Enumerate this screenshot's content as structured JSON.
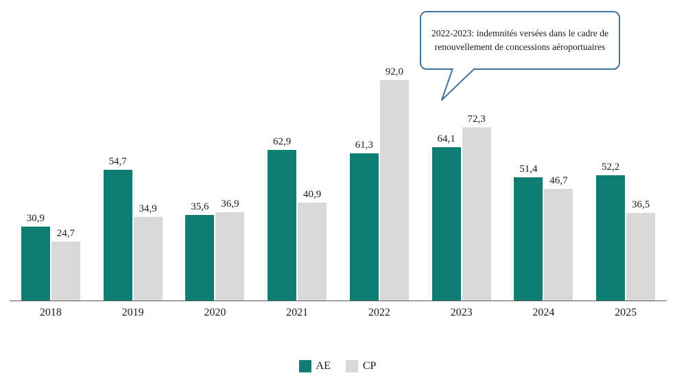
{
  "chart_data": {
    "type": "bar",
    "title": "",
    "xlabel": "",
    "ylabel": "",
    "categories": [
      "2018",
      "2019",
      "2020",
      "2021",
      "2022",
      "2023",
      "2024",
      "2025"
    ],
    "series": [
      {
        "name": "AE",
        "color": "#0e7d72",
        "values": [
          30.9,
          54.7,
          35.6,
          62.9,
          61.3,
          64.1,
          51.4,
          52.2
        ]
      },
      {
        "name": "CP",
        "color": "#d9d9d9",
        "values": [
          24.7,
          34.9,
          36.9,
          40.9,
          92.0,
          72.3,
          46.7,
          36.5
        ]
      }
    ],
    "ylim": [
      0,
      100
    ],
    "grid": false,
    "axis_visible": "x-only",
    "value_labels": true,
    "value_format": "one-decimal-comma",
    "legend_position": "bottom",
    "annotation": {
      "text": "2022-2023: indemnités versées dans le cadre de renouvellement de concessions aéroportuaires",
      "border_color": "#41719C",
      "points_to": "2023"
    }
  }
}
